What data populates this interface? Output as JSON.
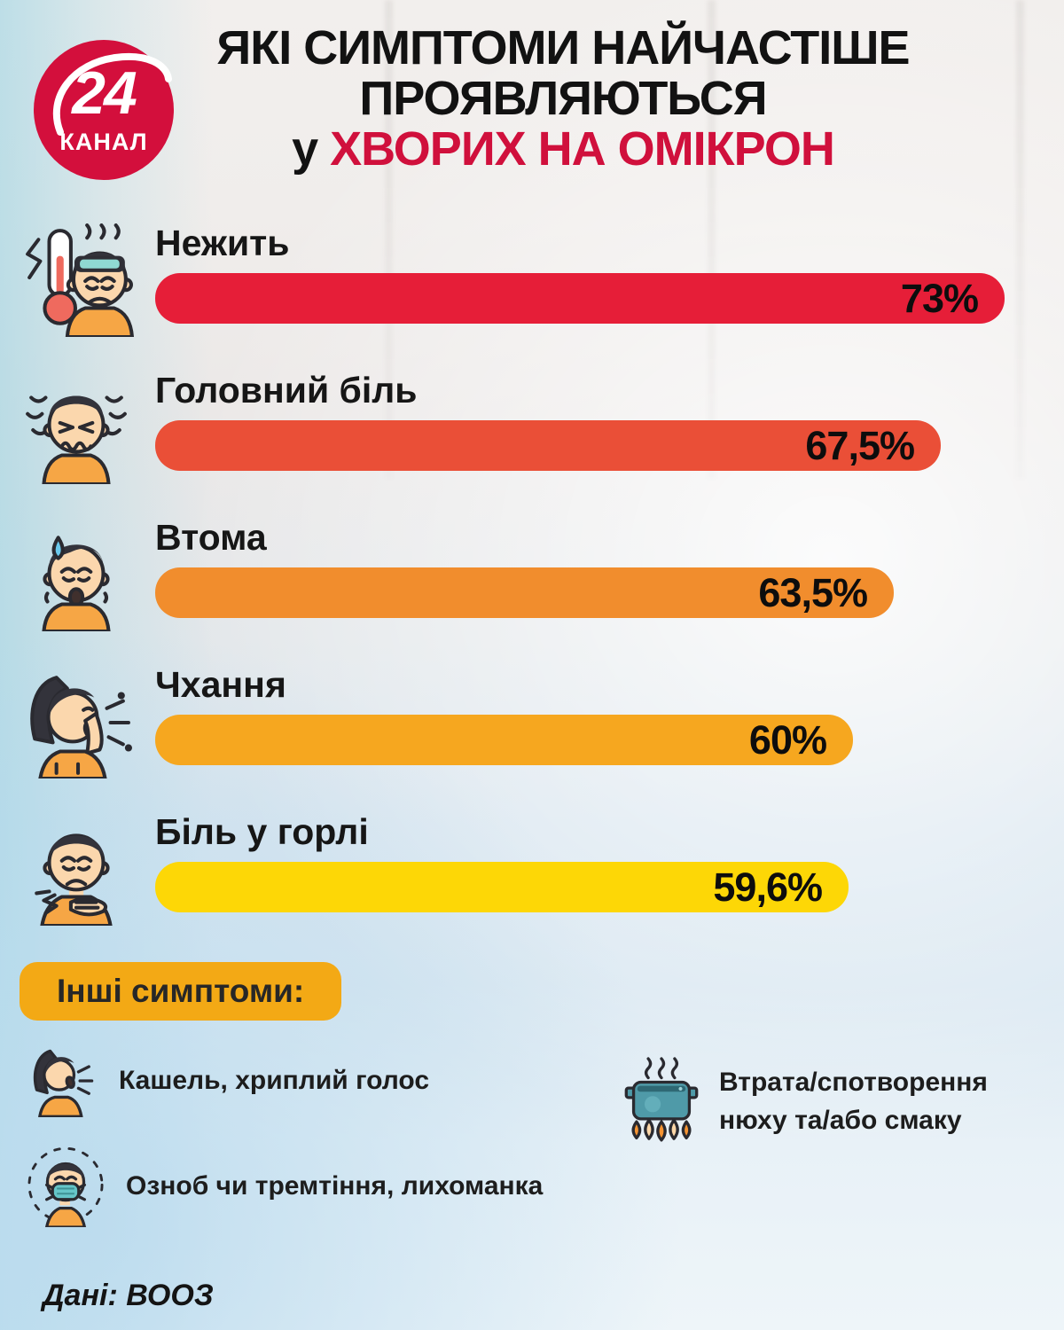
{
  "logo": {
    "number": "24",
    "caption": "КАНАЛ"
  },
  "title": {
    "line1": "ЯКІ СИМПТОМИ НАЙЧАСТІШЕ",
    "line2": "ПРОЯВЛЯЮТЬСЯ",
    "line3_prefix": "у ",
    "line3_highlight": "ХВОРИХ НА ОМІКРОН",
    "highlight_color": "#d0103c"
  },
  "chart_data": {
    "type": "bar",
    "orientation": "horizontal",
    "categories": [
      "Нежить",
      "Головний біль",
      "Втома",
      "Чхання",
      "Біль у горлі"
    ],
    "values": [
      73,
      67.5,
      63.5,
      60,
      59.6
    ],
    "value_labels": [
      "73%",
      "67,5%",
      "63,5%",
      "60%",
      "59,6%"
    ],
    "bar_colors": [
      "#e61e38",
      "#ea4f37",
      "#f18d2d",
      "#f6a71f",
      "#fdd706"
    ],
    "xlim": [
      0,
      100
    ],
    "value_label_position": "inside-right",
    "icons": [
      "fever",
      "headache",
      "fatigue",
      "sneezing",
      "sore-throat"
    ]
  },
  "other_symptoms": {
    "heading": "Інші симптоми:",
    "items": [
      {
        "icon": "cough",
        "text": "Кашель, хриплий голос"
      },
      {
        "icon": "chills",
        "text": "Озноб чи тремтіння, лихоманка"
      },
      {
        "icon": "smell-taste",
        "text": "Втрата/спотворення нюху та/або смаку"
      }
    ]
  },
  "footer": {
    "source": "Дані: ВООЗ"
  }
}
